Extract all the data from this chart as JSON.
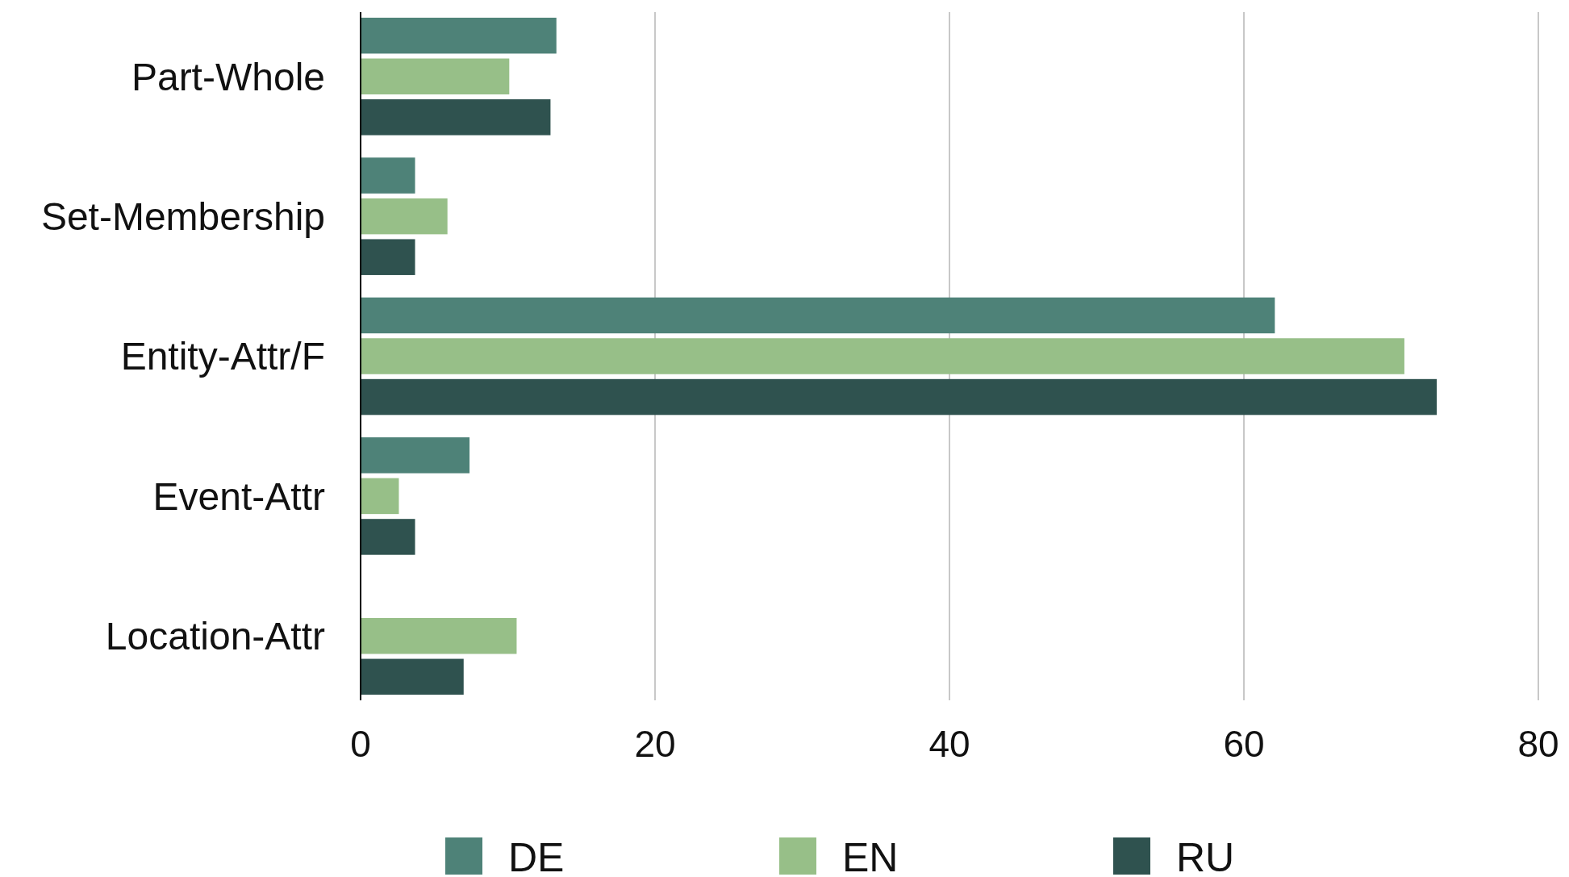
{
  "chart_data": {
    "type": "bar",
    "orientation": "horizontal",
    "categories": [
      "Part-Whole",
      "Set-Membership",
      "Entity-Attr/F",
      "Event-Attr",
      "Location-Attr"
    ],
    "series": [
      {
        "name": "DE",
        "color": "#4e8278",
        "values": [
          13.3,
          3.7,
          62.1,
          7.4,
          0
        ]
      },
      {
        "name": "EN",
        "color": "#97bf88",
        "values": [
          10.1,
          5.9,
          70.9,
          2.6,
          10.6
        ]
      },
      {
        "name": "RU",
        "color": "#2f524f",
        "values": [
          12.9,
          3.7,
          73.1,
          3.7,
          7.0
        ]
      }
    ],
    "xlim": [
      0,
      80
    ],
    "xticks": [
      0,
      20,
      40,
      60,
      80
    ],
    "grid": "x",
    "legend": "bottom"
  }
}
